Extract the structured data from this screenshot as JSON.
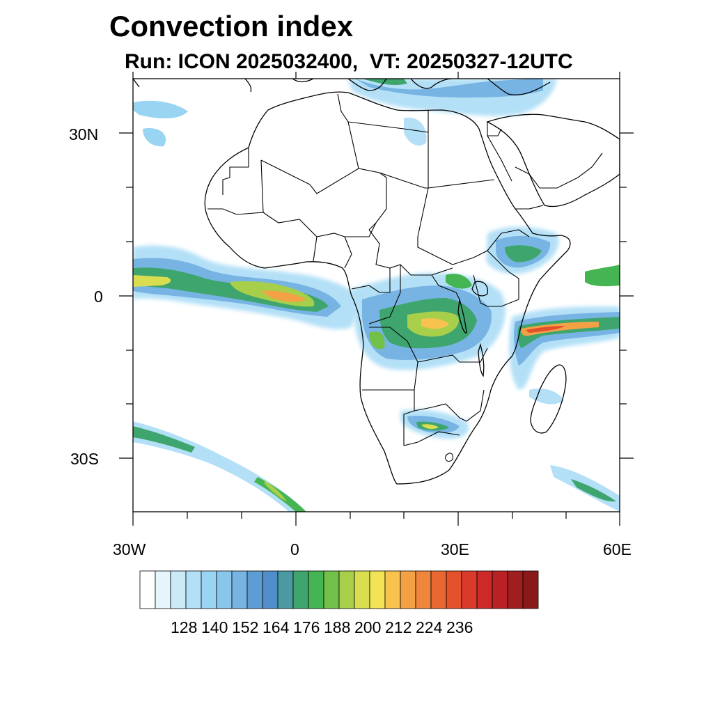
{
  "title": "Convection index",
  "subtitle": "Run: ICON 2025032400,  VT: 20250327-12UTC",
  "map": {
    "projection": "cylindrical equidistant",
    "lon_range": [
      -30,
      60
    ],
    "lat_range": [
      -40,
      40
    ],
    "lon_ticks": [
      "30W",
      "0",
      "30E",
      "60E"
    ],
    "lat_ticks": [
      "30N",
      "0",
      "30S"
    ]
  },
  "colorbar": {
    "labels": [
      "128",
      "140",
      "152",
      "164",
      "176",
      "188",
      "200",
      "212",
      "224",
      "236"
    ],
    "colors": [
      "#ffffff",
      "#e6f4fc",
      "#cce9f8",
      "#b3e0f7",
      "#99d4f2",
      "#88c6ec",
      "#78b4e3",
      "#5e9cd4",
      "#4f8ec8",
      "#4a9aa0",
      "#3ea56e",
      "#44b552",
      "#72c04a",
      "#a8cf4a",
      "#d9de50",
      "#f2e256",
      "#f7c24e",
      "#f4a146",
      "#f0853c",
      "#ea6732",
      "#e3502c",
      "#da3a2a",
      "#cc2a28",
      "#b82224",
      "#a01d20",
      "#8a1a1a"
    ]
  },
  "regions": [
    {
      "name": "Atlantic ITCZ band",
      "intensity": "moderate-high"
    },
    {
      "name": "Gulf of Guinea / Central Africa",
      "intensity": "high"
    },
    {
      "name": "Congo Basin",
      "intensity": "high"
    },
    {
      "name": "East Africa / Horn",
      "intensity": "moderate"
    },
    {
      "name": "Indian Ocean (east of Tanzania)",
      "intensity": "very high"
    },
    {
      "name": "Southern Africa (Botswana/Zimbabwe)",
      "intensity": "moderate"
    },
    {
      "name": "South Atlantic frontal band",
      "intensity": "moderate"
    },
    {
      "name": "South Indian Ocean frontal band",
      "intensity": "moderate"
    },
    {
      "name": "Mediterranean",
      "intensity": "moderate"
    }
  ]
}
